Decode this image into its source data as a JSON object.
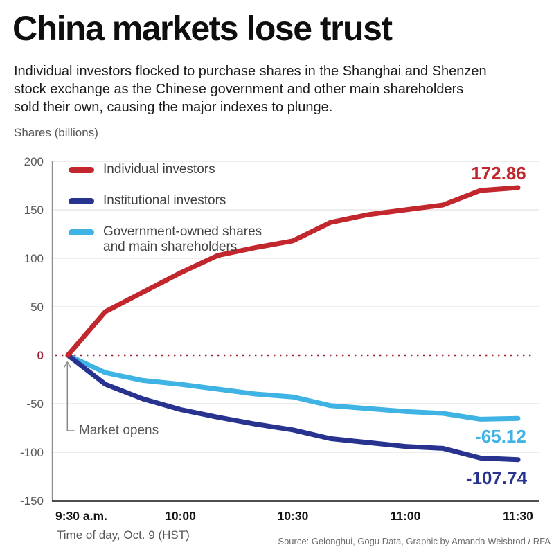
{
  "header": {
    "title": "China markets lose trust",
    "subtitle_lines": [
      "Individual investors flocked to purchase shares in the Shanghai and Shenzen",
      "stock exchange as the Chinese government and other main shareholders",
      "sold their own, causing the major indexes to plunge."
    ],
    "units_label": "Shares (billions)"
  },
  "chart_data": {
    "type": "line",
    "title": "China markets lose trust",
    "ylabel": "Shares (billions)",
    "xlabel": "Time of day, Oct. 9 (HST)",
    "ylim": [
      -150,
      200
    ],
    "grid": true,
    "legend_position": "top-left",
    "y_ticks": [
      200,
      150,
      100,
      50,
      0,
      -50,
      -100,
      -150
    ],
    "x": [
      "9:30",
      "9:40",
      "9:50",
      "10:00",
      "10:10",
      "10:20",
      "10:30",
      "10:40",
      "10:50",
      "11:00",
      "11:10",
      "11:20",
      "11:30"
    ],
    "x_tick_labels": [
      "9:30 a.m.",
      "10:00",
      "10:30",
      "11:00",
      "11:30"
    ],
    "series": [
      {
        "name": "Individual investors",
        "color": "#c1272d",
        "values": [
          0,
          45,
          65,
          85,
          103,
          111,
          118,
          137,
          145,
          150,
          155,
          170,
          172.86
        ],
        "end_label": "172.86"
      },
      {
        "name": "Institutional investors",
        "color": "#28338f",
        "values": [
          0,
          -30,
          -45,
          -56,
          -64,
          -71,
          -77,
          -86,
          -90,
          -94,
          -96,
          -106,
          -107.74
        ],
        "end_label": "-107.74"
      },
      {
        "name": "Government-owned shares and main shareholders",
        "color": "#3eb3e4",
        "values": [
          0,
          -18,
          -26,
          -30,
          -35,
          -40,
          -43,
          -52,
          -55,
          -58,
          -60,
          -66,
          -65.12
        ],
        "end_label": "-65.12"
      }
    ],
    "zero_line_color": "#9c2134",
    "annotation": "Market opens"
  },
  "footer": {
    "xlabel": "Time of day, Oct. 9 (HST)",
    "source": "Source: Gelonghui, Gogu Data, Graphic by Amanda Weisbrod / RFA"
  }
}
